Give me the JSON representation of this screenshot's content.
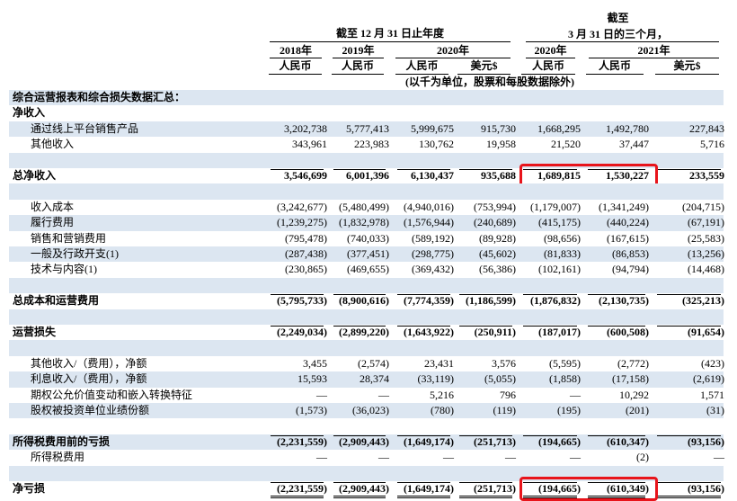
{
  "header": {
    "period_year": "截至 12 月 31 日止年度",
    "period_quarter": [
      "截至",
      "3 月 31 日的三个月，"
    ],
    "years": [
      "2018年",
      "2019年",
      "2020年",
      "2020年",
      "2021年"
    ],
    "currencies": [
      "人民币",
      "人民币",
      "人民币",
      "美元$",
      "人民币",
      "人民币",
      "美元$"
    ],
    "unit_note": "(以千为单位，股票和每股数据除外)"
  },
  "rows": [
    {
      "label": "综合运营报表和综合损失数据汇总："
    },
    {
      "label": "净收入"
    },
    {
      "label": "通过线上平台销售产品",
      "values": [
        "3,202,738",
        "5,777,413",
        "5,999,675",
        "915,730",
        "1,668,295",
        "1,492,780",
        "227,843"
      ]
    },
    {
      "label": "其他收入",
      "values": [
        "343,961",
        "223,983",
        "130,762",
        "19,958",
        "21,520",
        "37,447",
        "5,716"
      ]
    },
    {
      "label": "总净收入",
      "values": [
        "3,546,699",
        "6,001,396",
        "6,130,437",
        "935,688",
        "1,689,815",
        "1,530,227",
        "233,559"
      ]
    },
    {
      "label": "收入成本",
      "values": [
        "(3,242,677)",
        "(5,480,499)",
        "(4,940,016)",
        "(753,994)",
        "(1,179,007)",
        "(1,341,249)",
        "(204,715)"
      ]
    },
    {
      "label": "履行费用",
      "values": [
        "(1,239,275)",
        "(1,832,978)",
        "(1,576,944)",
        "(240,689)",
        "(415,175)",
        "(440,224)",
        "(67,191)"
      ]
    },
    {
      "label": "销售和营销费用",
      "values": [
        "(795,478)",
        "(740,033)",
        "(589,192)",
        "(89,928)",
        "(98,656)",
        "(167,615)",
        "(25,583)"
      ]
    },
    {
      "label": "一般及行政开支(1)",
      "values": [
        "(287,438)",
        "(377,451)",
        "(298,775)",
        "(45,602)",
        "(81,833)",
        "(86,853)",
        "(13,256)"
      ]
    },
    {
      "label": "技术与内容(1)",
      "values": [
        "(230,865)",
        "(469,655)",
        "(369,432)",
        "(56,386)",
        "(102,161)",
        "(94,794)",
        "(14,468)"
      ]
    },
    {
      "label": "总成本和运营费用",
      "values": [
        "(5,795,733)",
        "(8,900,616)",
        "(7,774,359)",
        "(1,186,599)",
        "(1,876,832)",
        "(2,130,735)",
        "(325,213)"
      ]
    },
    {
      "label": "运营损失",
      "values": [
        "(2,249,034)",
        "(2,899,220)",
        "(1,643,922)",
        "(250,911)",
        "(187,017)",
        "(600,508)",
        "(91,654)"
      ]
    },
    {
      "label": "其他收入/（费用），净额",
      "values": [
        "3,455",
        "(2,574)",
        "23,431",
        "3,576",
        "(5,595)",
        "(2,772)",
        "(423)"
      ]
    },
    {
      "label": "利息收入/（费用），净额",
      "values": [
        "15,593",
        "28,374",
        "(33,119)",
        "(5,055)",
        "(1,858)",
        "(17,158)",
        "(2,619)"
      ]
    },
    {
      "label": "期权公允价值变动和嵌入转换特征",
      "values": [
        "—",
        "—",
        "5,216",
        "796",
        "—",
        "10,292",
        "1,571"
      ]
    },
    {
      "label": "股权被投资单位业绩份额",
      "values": [
        "(1,573)",
        "(36,023)",
        "(780)",
        "(119)",
        "(195)",
        "(201)",
        "(31)"
      ]
    },
    {
      "label": "所得税费用前的亏损",
      "values": [
        "(2,231,559)",
        "(2,909,443)",
        "(1,649,174)",
        "(251,713)",
        "(194,665)",
        "(610,347)",
        "(93,156)"
      ]
    },
    {
      "label": "所得税费用",
      "values": [
        "—",
        "—",
        "—",
        "—",
        "—",
        "(2)",
        "—"
      ]
    },
    {
      "label": "净亏损",
      "values": [
        "(2,231,559)",
        "(2,909,443)",
        "(1,649,174)",
        "(251,713)",
        "(194,665)",
        "(610,349)",
        "(93,156)"
      ]
    }
  ]
}
